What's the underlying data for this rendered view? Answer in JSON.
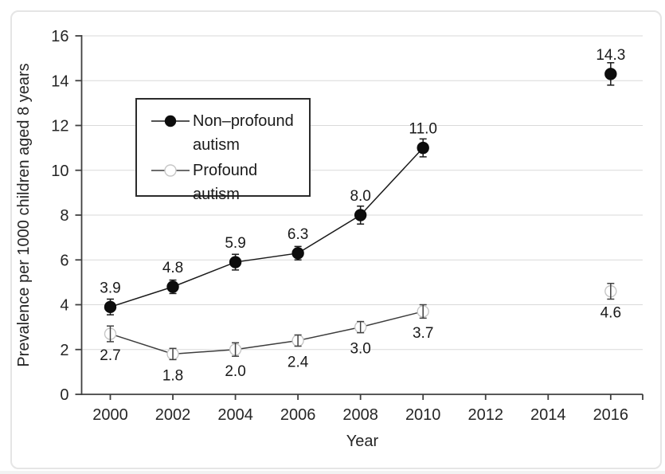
{
  "figure": {
    "background": "#ffffff",
    "border_color": "#e5e5e5"
  },
  "chart_data": {
    "type": "line",
    "title": "",
    "xlabel": "Year",
    "ylabel": "Prevalence per 1000 children aged 8 years",
    "x_ticks": [
      2000,
      2002,
      2004,
      2006,
      2008,
      2010,
      2012,
      2014,
      2016
    ],
    "y_ticks": [
      0,
      2,
      4,
      6,
      8,
      10,
      12,
      14,
      16
    ],
    "xlim": [
      1999.1,
      2017
    ],
    "ylim": [
      0,
      16
    ],
    "grid": "horizontal",
    "grid_color": "#d9d9d9",
    "axis_color": "#404040",
    "tick_label_color": "#262626",
    "data_label_color": "#1a1a1a",
    "legend_position": "upper-left-inside",
    "series": [
      {
        "name": "Non–profound autism",
        "marker": "filled-circle",
        "marker_color": "#0d0d0d",
        "marker_stroke": "#0d0d0d",
        "line_color": "#1a1a1a",
        "error_color": "#1a1a1a",
        "x": [
          2000,
          2002,
          2004,
          2006,
          2008,
          2010,
          2016
        ],
        "y": [
          3.9,
          4.8,
          5.9,
          6.3,
          8.0,
          11.0,
          14.3
        ],
        "labels": [
          "3.9",
          "4.8",
          "5.9",
          "6.3",
          "8.0",
          "11.0",
          "14.3"
        ],
        "label_position": "above",
        "error": [
          0.35,
          0.3,
          0.35,
          0.3,
          0.4,
          0.4,
          0.5
        ],
        "segments": [
          [
            0,
            1,
            2,
            3,
            4,
            5
          ],
          [
            6
          ]
        ]
      },
      {
        "name": "Profound autism",
        "marker": "open-circle",
        "marker_color": "#ffffff",
        "marker_stroke": "#c6c6c6",
        "line_color": "#3d3d3d",
        "error_color": "#404040",
        "x": [
          2000,
          2002,
          2004,
          2006,
          2008,
          2010,
          2016
        ],
        "y": [
          2.7,
          1.8,
          2.0,
          2.4,
          3.0,
          3.7,
          4.6
        ],
        "labels": [
          "2.7",
          "1.8",
          "2.0",
          "2.4",
          "3.0",
          "3.7",
          "4.6"
        ],
        "label_position": "below",
        "error": [
          0.35,
          0.25,
          0.3,
          0.25,
          0.25,
          0.3,
          0.35
        ],
        "segments": [
          [
            0,
            1,
            2,
            3,
            4,
            5
          ],
          [
            6
          ]
        ]
      }
    ]
  }
}
